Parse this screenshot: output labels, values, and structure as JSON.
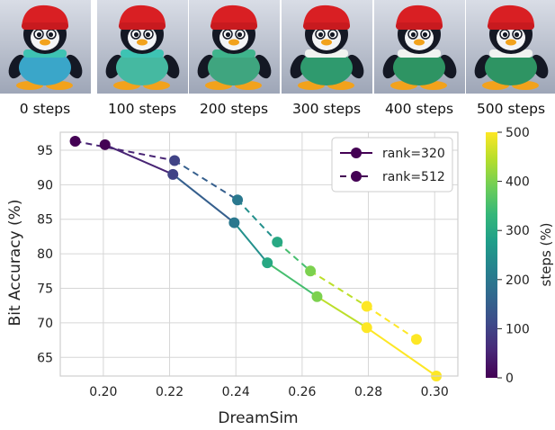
{
  "thumbnails": [
    {
      "label": "0 steps",
      "scarf": "#3ec3b3",
      "sweater": "#3aa6c9"
    },
    {
      "label": "100 steps",
      "scarf": "#3ec3b3",
      "sweater": "#45b9a1"
    },
    {
      "label": "200 steps",
      "scarf": "#3fb48c",
      "sweater": "#3fa57f"
    },
    {
      "label": "300 steps",
      "scarf": "#f1f3f0",
      "sweater": "#2f9a6e"
    },
    {
      "label": "400 steps",
      "scarf": "#f1f3f0",
      "sweater": "#2e9463"
    },
    {
      "label": "500 steps",
      "scarf": "#f1f3f0",
      "sweater": "#2e9463"
    }
  ],
  "chart_data": {
    "type": "line",
    "xlabel": "DreamSim",
    "ylabel": "Bit Accuracy (%)",
    "xlim": [
      0.187,
      0.307
    ],
    "ylim": [
      62.3,
      97.6
    ],
    "xticks": [
      "0.20",
      "0.22",
      "0.24",
      "0.26",
      "0.28",
      "0.30"
    ],
    "yticks": [
      "65",
      "70",
      "75",
      "80",
      "85",
      "90",
      "95"
    ],
    "grid": true,
    "legend_position": "top-right",
    "series": [
      {
        "name": "rank=320",
        "style": "solid",
        "points": [
          {
            "x": 0.2005,
            "y": 95.8,
            "steps": 0
          },
          {
            "x": 0.221,
            "y": 91.5,
            "steps": 100
          },
          {
            "x": 0.2395,
            "y": 84.5,
            "steps": 200
          },
          {
            "x": 0.2495,
            "y": 78.7,
            "steps": 300
          },
          {
            "x": 0.2645,
            "y": 73.8,
            "steps": 400
          },
          {
            "x": 0.2795,
            "y": 69.3,
            "steps": 500
          },
          {
            "x": 0.3005,
            "y": 62.3,
            "steps": 600
          }
        ]
      },
      {
        "name": "rank=512",
        "style": "dashed",
        "points": [
          {
            "x": 0.1915,
            "y": 96.3,
            "steps": 0
          },
          {
            "x": 0.2215,
            "y": 93.5,
            "steps": 100
          },
          {
            "x": 0.2405,
            "y": 87.8,
            "steps": 200
          },
          {
            "x": 0.2525,
            "y": 81.7,
            "steps": 300
          },
          {
            "x": 0.2625,
            "y": 77.5,
            "steps": 400
          },
          {
            "x": 0.2795,
            "y": 72.4,
            "steps": 500
          },
          {
            "x": 0.2945,
            "y": 67.6,
            "steps": 600
          }
        ]
      }
    ],
    "colorbar": {
      "label": "steps (%)",
      "range": [
        0,
        500
      ],
      "ticks": [
        "0",
        "100",
        "200",
        "300",
        "400",
        "500"
      ],
      "colormap": "viridis",
      "colormap_stops": [
        "#440154",
        "#482878",
        "#3e4a89",
        "#31688e",
        "#26828e",
        "#1f9e89",
        "#35b779",
        "#6ece58",
        "#b5de2b",
        "#fde725"
      ]
    }
  }
}
